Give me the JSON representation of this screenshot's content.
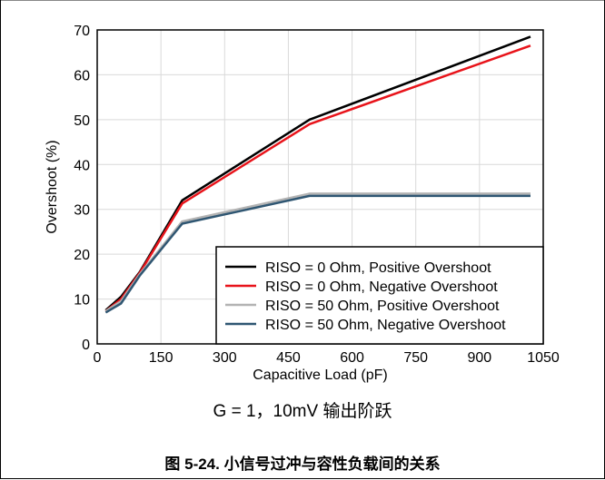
{
  "chart_data": {
    "type": "line",
    "xlabel": "Capacitive Load (pF)",
    "ylabel": "Overshoot (%)",
    "xlim": [
      0,
      1050
    ],
    "ylim": [
      0,
      70
    ],
    "xticks": [
      0,
      150,
      300,
      450,
      600,
      750,
      900,
      1050
    ],
    "yticks": [
      0,
      10,
      20,
      30,
      40,
      50,
      60,
      70
    ],
    "grid": true,
    "legend_position": "bottom-right",
    "series": [
      {
        "name": "RISO = 0 Ohm, Positive Overshoot",
        "color": "#000000",
        "x": [
          20,
          56,
          100,
          200,
          500,
          1020
        ],
        "y": [
          7.5,
          10.5,
          16,
          32,
          50,
          68.5
        ]
      },
      {
        "name": "RISO = 0 Ohm, Negative Overshoot",
        "color": "#e8131a",
        "x": [
          20,
          56,
          100,
          200,
          500,
          1020
        ],
        "y": [
          7.3,
          10,
          15.8,
          31.3,
          49,
          66.5
        ]
      },
      {
        "name": "RISO = 50 Ohm, Positive Overshoot",
        "color": "#b3b3b3",
        "x": [
          20,
          56,
          100,
          200,
          500,
          1020
        ],
        "y": [
          7.3,
          9.5,
          15.5,
          27.3,
          33.5,
          33.5
        ]
      },
      {
        "name": "RISO = 50 Ohm, Negative Overshoot",
        "color": "#2f5672",
        "x": [
          20,
          56,
          100,
          200,
          500,
          1020
        ],
        "y": [
          7,
          9,
          15.2,
          26.8,
          33,
          33
        ]
      }
    ]
  },
  "subtitle": "G = 1，10mV 输出阶跃",
  "caption": "图 5-24. 小信号过冲与容性负载间的关系"
}
